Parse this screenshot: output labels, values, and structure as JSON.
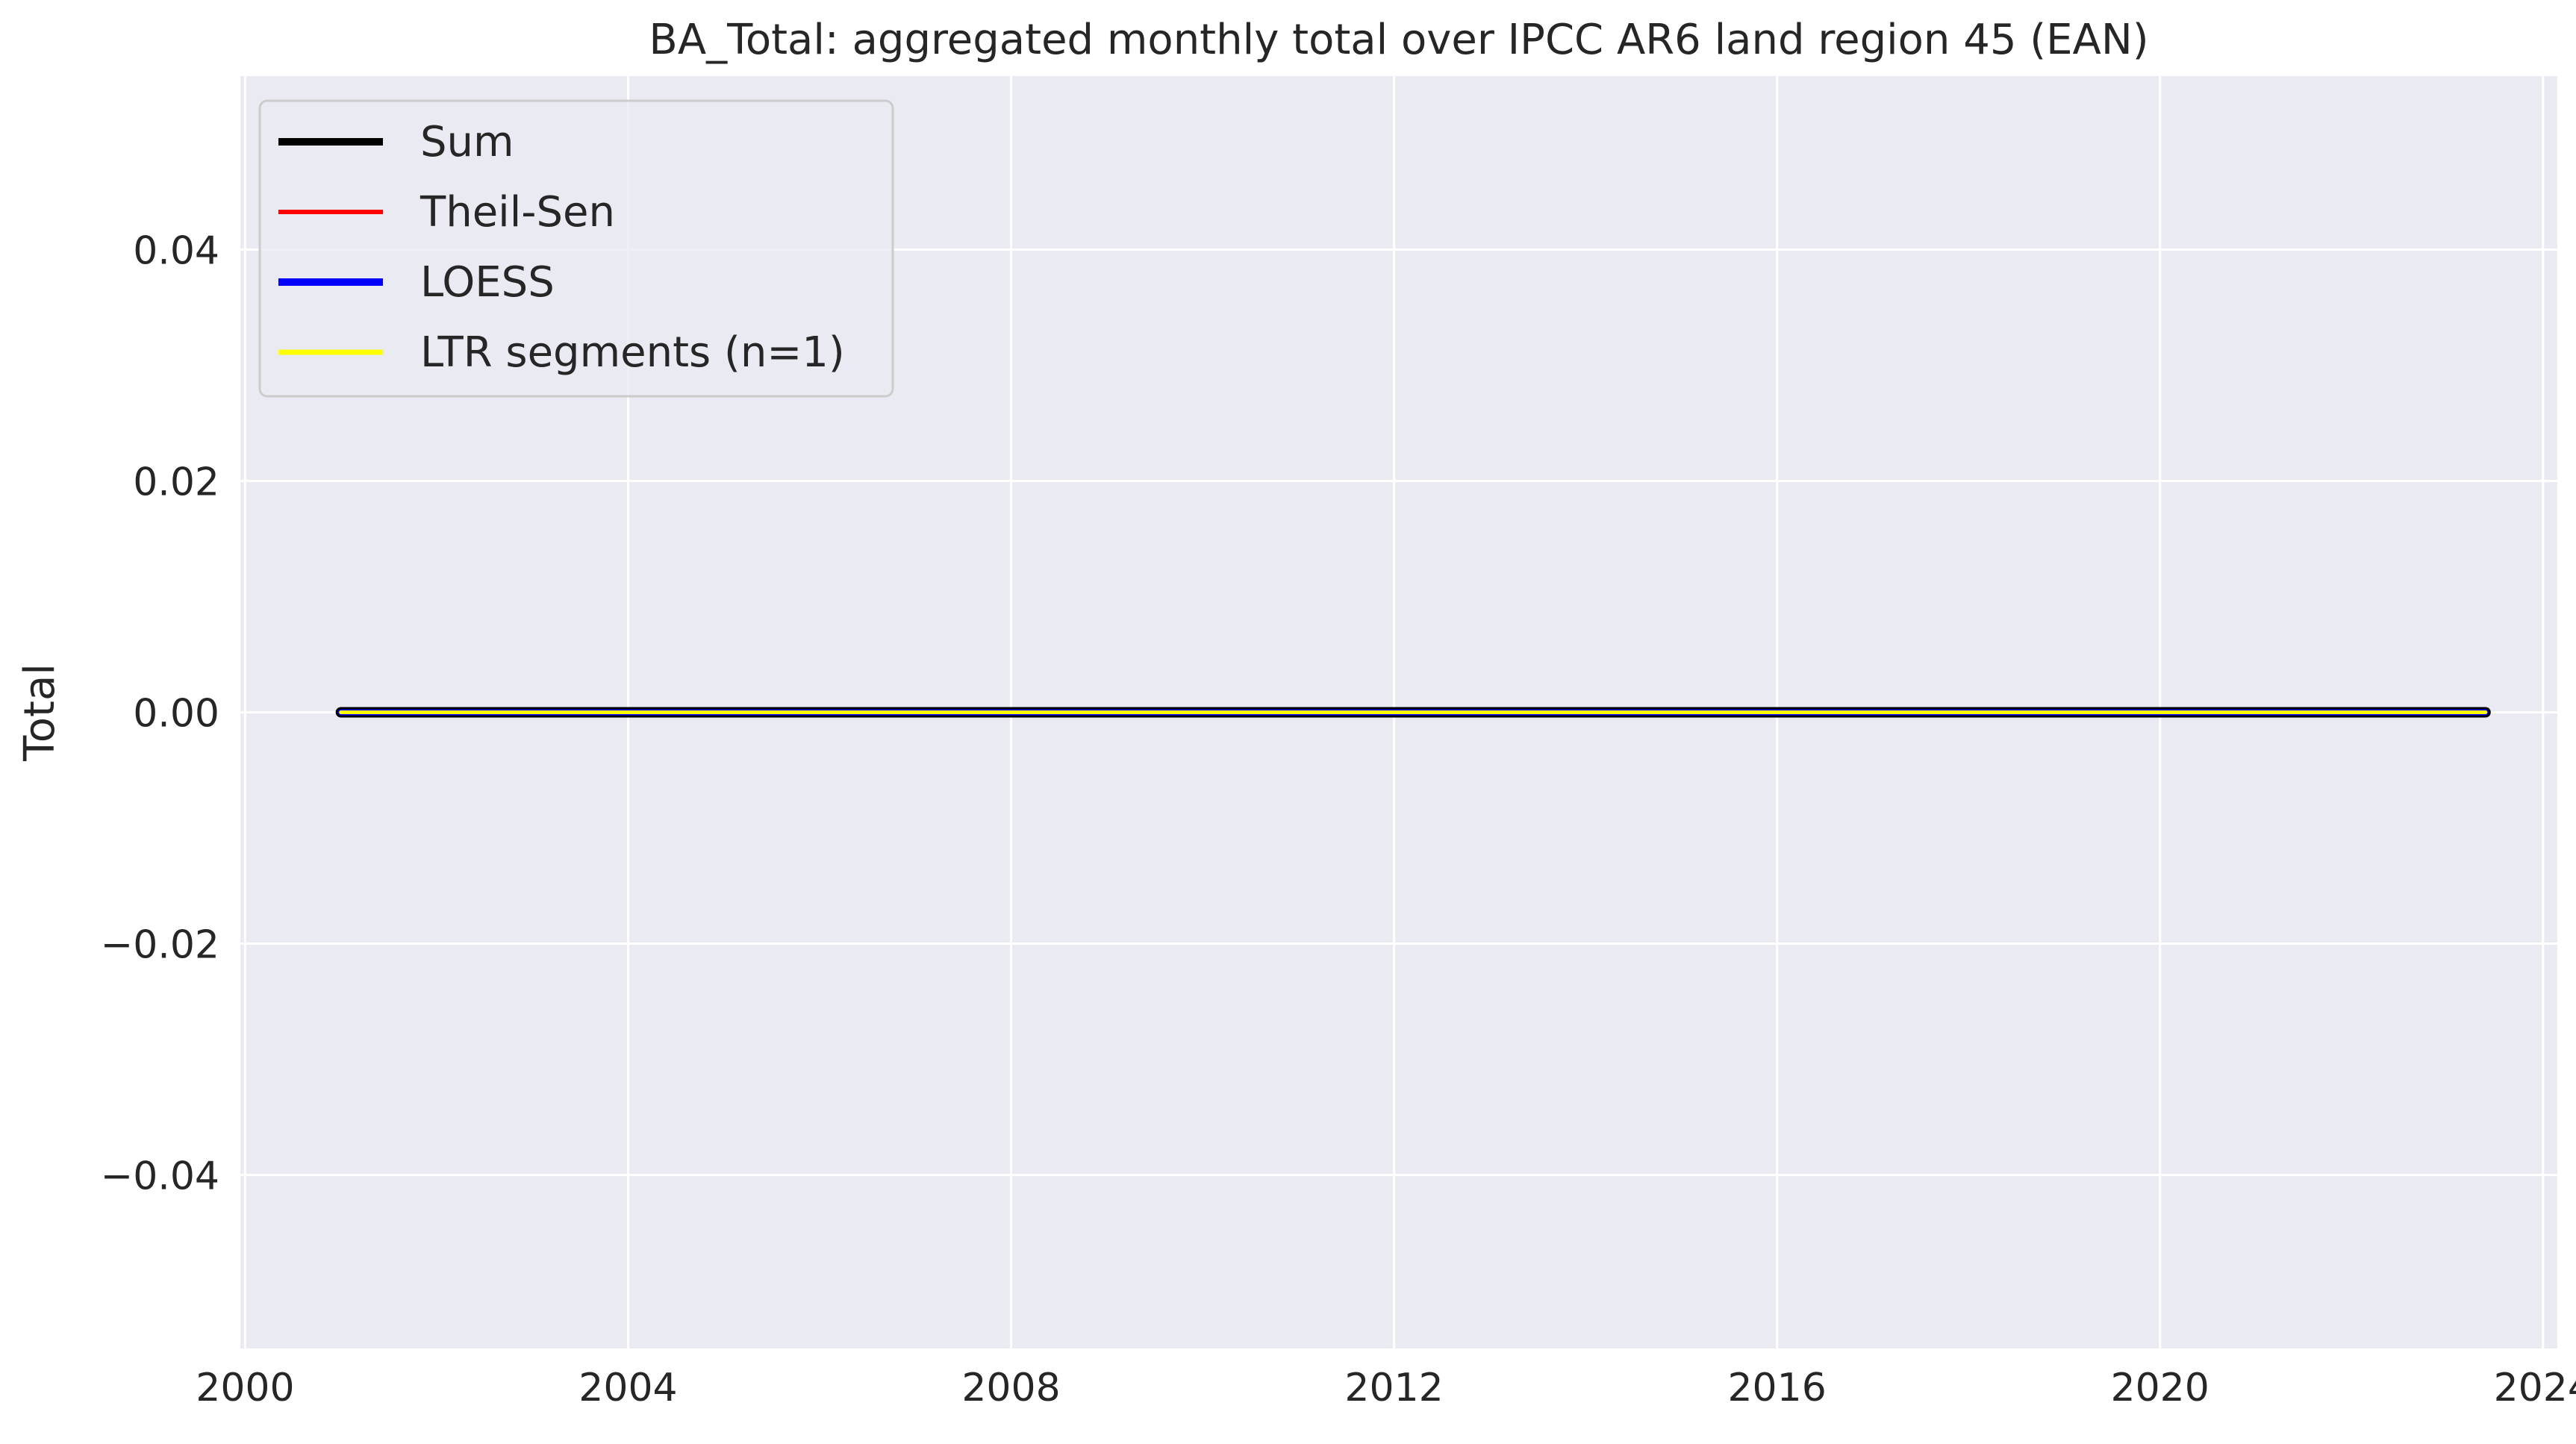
{
  "chart_data": {
    "type": "line",
    "title": "BA_Total: aggregated monthly total over IPCC AR6 land region 45 (EAN)",
    "xlabel": "",
    "ylabel": "Total",
    "xlim": [
      1999.95,
      2024.15
    ],
    "ylim": [
      -0.055,
      0.055
    ],
    "x_ticks": [
      2000,
      2004,
      2008,
      2012,
      2016,
      2020,
      2024
    ],
    "x_tick_labels": [
      "2000",
      "2004",
      "2008",
      "2012",
      "2016",
      "2020",
      "2024"
    ],
    "y_ticks": [
      0.04,
      0.02,
      0.0,
      -0.02,
      -0.04
    ],
    "y_tick_labels": [
      "0.04",
      "0.02",
      "0.00",
      "−0.02",
      "−0.04"
    ],
    "grid": true,
    "legend_position": "top-left",
    "series": [
      {
        "name": "Sum",
        "color": "#000000",
        "x": [
          2001.0,
          2023.4
        ],
        "y": [
          0,
          0
        ]
      },
      {
        "name": "Theil-Sen",
        "color": "#ff0000",
        "x": [
          2001.0,
          2023.4
        ],
        "y": [
          0,
          0
        ]
      },
      {
        "name": "LOESS",
        "color": "#0000ff",
        "x": [
          2001.0,
          2023.4
        ],
        "y": [
          0,
          0
        ]
      },
      {
        "name": "LTR segments (n=1)",
        "color": "#ffff00",
        "x": [
          2001.0,
          2023.4
        ],
        "y": [
          0,
          0
        ]
      }
    ],
    "colors": {
      "plot_background": "#eaeaf2",
      "grid": "#ffffff",
      "text": "#262626"
    }
  }
}
